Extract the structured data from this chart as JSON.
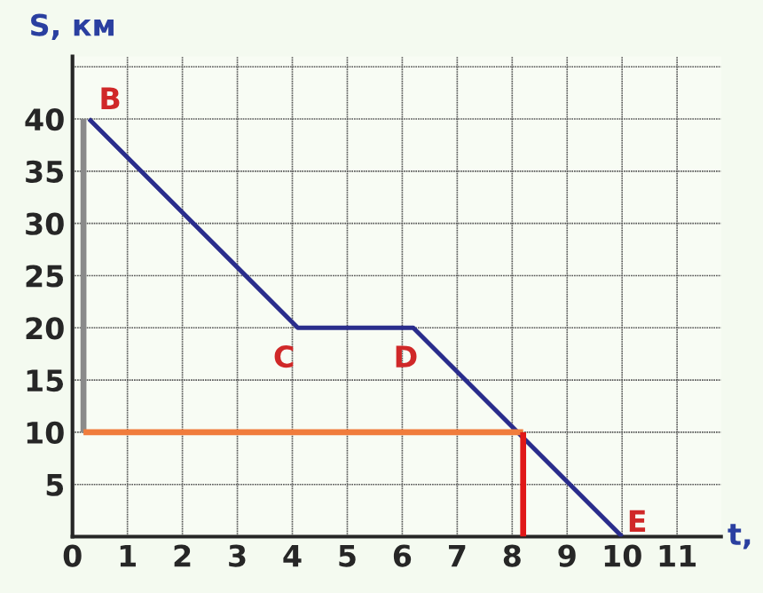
{
  "chart_data": {
    "type": "line",
    "xlabel": "t,",
    "ylabel": "S, км",
    "series": [
      {
        "color": "#2a2d8c",
        "x": [
          0.3,
          4.1,
          6.2,
          10.0
        ],
        "values": [
          40,
          20,
          20,
          0
        ]
      },
      {
        "color": "#8a8a8a",
        "x": [
          0.2,
          0.2
        ],
        "values": [
          10,
          40
        ]
      },
      {
        "color": "#f07c3c",
        "x": [
          0.2,
          8.2
        ],
        "values": [
          10,
          10
        ]
      },
      {
        "color": "#e01818",
        "x": [
          8.2,
          8.2
        ],
        "values": [
          0,
          10
        ]
      }
    ],
    "annotations": [
      {
        "text": "B",
        "x": 0.3,
        "y": 40
      },
      {
        "text": "C",
        "x": 4.1,
        "y": 20
      },
      {
        "text": "D",
        "x": 6.2,
        "y": 20
      },
      {
        "text": "E",
        "x": 10.0,
        "y": 0
      }
    ],
    "xlim": [
      0,
      11.8
    ],
    "ylim": [
      0,
      46
    ],
    "xticks": [
      0,
      1,
      2,
      3,
      4,
      5,
      6,
      7,
      8,
      9,
      10,
      11
    ],
    "yticks": [
      5,
      10,
      15,
      20,
      25,
      30,
      35,
      40,
      {
        "value": 45,
        "label": null
      }
    ],
    "grid": true,
    "marker": "none",
    "line_style": "solid",
    "legend": false
  }
}
